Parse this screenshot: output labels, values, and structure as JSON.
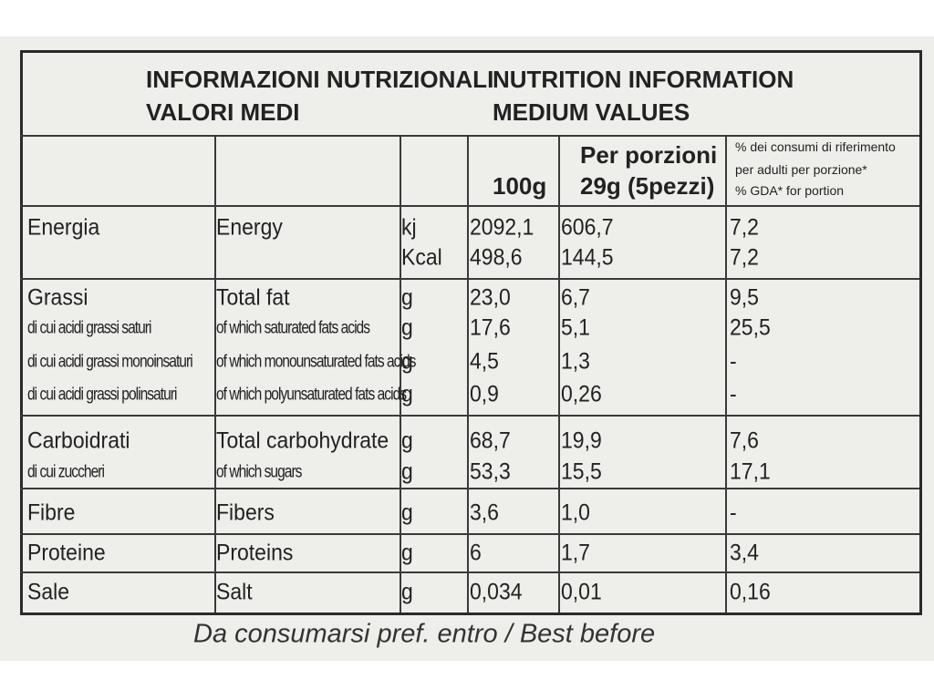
{
  "header": {
    "title_it": "INFORMAZIONI NUTRIZIONALI",
    "subtitle_it": "VALORI MEDI",
    "title_en": "NUTRITION INFORMATION",
    "subtitle_en": "MEDIUM VALUES"
  },
  "columns": {
    "per_100g": "100g",
    "per_portion": [
      "Per porzioni",
      "29g (5pezzi)"
    ],
    "gda": [
      "% dei consumi di riferimento",
      "per adulti per porzione*",
      "% GDA* for portion"
    ]
  },
  "rows": [
    [
      [
        "Energia",
        "Energy",
        "kj",
        "2092,1",
        "606,7",
        "7,2"
      ],
      [
        null,
        null,
        "Kcal",
        "498,6",
        "144,5",
        "7,2"
      ]
    ],
    [
      [
        "Grassi",
        "Total fat",
        "g",
        "23,0",
        "6,7",
        "9,5"
      ],
      [
        "di cui acidi grassi saturi",
        "of which saturated fats acids",
        "g",
        "17,6",
        "5,1",
        "25,5"
      ],
      [
        "di cui acidi grassi monoinsaturi",
        "of which monounsaturated fats acids",
        "g",
        "4,5",
        "1,3",
        "-"
      ],
      [
        "di cui acidi grassi polinsaturi",
        "of which polyunsaturated fats acids",
        "g",
        "0,9",
        "0,26",
        "-"
      ]
    ],
    [
      [
        "Carboidrati",
        "Total carbohydrate",
        "g",
        "68,7",
        "19,9",
        "7,6"
      ],
      [
        "di cui zuccheri",
        "of which sugars",
        "g",
        "53,3",
        "15,5",
        "17,1"
      ]
    ],
    [
      [
        "Fibre",
        "Fibers",
        "g",
        "3,6",
        "1,0",
        "-"
      ]
    ],
    [
      [
        "Proteine",
        "Proteins",
        "g",
        "6",
        "1,7",
        "3,4"
      ]
    ],
    [
      [
        "Sale",
        "Salt",
        "g",
        "0,034",
        "0,01",
        "0,16"
      ]
    ]
  ],
  "footer": "Da consumarsi pref. entro / Best before"
}
